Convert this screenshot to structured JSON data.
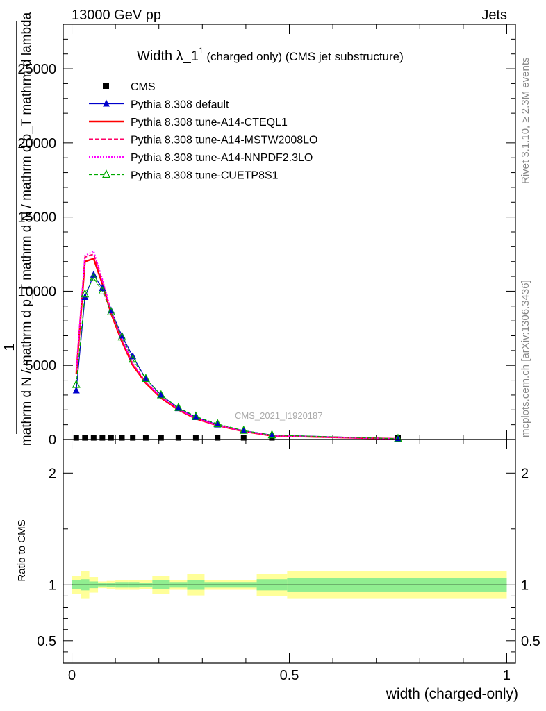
{
  "header": {
    "left": "13000 GeV pp",
    "right": "Jets"
  },
  "side_labels": {
    "rivet": "Rivet 3.1.10, ≥ 2.3M events",
    "mcplots": "mcplots.cern.ch [arXiv:1306.3436]"
  },
  "watermark": "CMS_2021_I1920187",
  "colors": {
    "cms": "#000000",
    "default": "#0000cc",
    "cteql1": "#ff0000",
    "mstw": "#ff0066",
    "nnpdf": "#ff00ff",
    "cuetp8s1": "#00aa00",
    "band_inner": "#90ee90",
    "band_outer": "#ffff99"
  },
  "chart_data": [
    {
      "type": "line",
      "title": "Width λ_1",
      "title_sup": "1",
      "title_suffix": " (charged only) (CMS jet substructure)",
      "ylabel_numerator": "1",
      "ylabel_denominator": "mathrm d N / mathrm d p_T mathrm d N / mathrm d p_T mathrm d lambda",
      "ylabel_pieces": [
        "mathrm d",
        "N",
        "mathrm d p_T mathrm d lambda"
      ],
      "ylabel_full": "mathrm d N / mathrm d p_T mathrm d N / mathrm d p_T mathrm d lambda",
      "xlim": [
        -0.02,
        1.02
      ],
      "ylim": [
        0,
        28000
      ],
      "yticks": [
        0,
        5000,
        10000,
        15000,
        20000,
        25000
      ],
      "ytick_labels": [
        "0",
        "5000",
        "10000",
        "15000",
        "20000",
        "25000"
      ],
      "legend_position": "top-left",
      "x": [
        0.01,
        0.03,
        0.05,
        0.07,
        0.09,
        0.115,
        0.14,
        0.17,
        0.205,
        0.245,
        0.285,
        0.335,
        0.395,
        0.46,
        0.75
      ],
      "series": [
        {
          "name": "CMS",
          "key": "cms",
          "marker": "square",
          "values": [
            20,
            20,
            20,
            20,
            20,
            20,
            20,
            20,
            20,
            20,
            20,
            20,
            20,
            20,
            20
          ]
        },
        {
          "name": "Pythia 8.308 default",
          "key": "default",
          "marker": "triangle-filled",
          "values": [
            3300,
            9600,
            11100,
            10200,
            8700,
            7000,
            5600,
            4100,
            3000,
            2100,
            1500,
            1000,
            600,
            300,
            50
          ]
        },
        {
          "name": "Pythia 8.308 tune-A14-CTEQL1",
          "key": "cteql1",
          "marker": "none",
          "values": [
            4400,
            12000,
            12200,
            10500,
            8500,
            6600,
            5000,
            3800,
            2800,
            2000,
            1400,
            950,
            550,
            250,
            40
          ]
        },
        {
          "name": "Pythia 8.308 tune-A14-MSTW2008LO",
          "key": "mstw",
          "marker": "none",
          "values": [
            4600,
            12300,
            12500,
            10700,
            8600,
            6700,
            5100,
            3850,
            2850,
            2020,
            1420,
            960,
            560,
            255,
            40
          ]
        },
        {
          "name": "Pythia 8.308 tune-A14-NNPDF2.3LO",
          "key": "nnpdf",
          "marker": "none",
          "values": [
            4700,
            12400,
            12700,
            10800,
            8700,
            6800,
            5150,
            3900,
            2900,
            2050,
            1440,
            970,
            570,
            260,
            40
          ]
        },
        {
          "name": "Pythia 8.308 tune-CUETP8S1",
          "key": "cuetp8s1",
          "marker": "triangle-open",
          "values": [
            3700,
            9800,
            10900,
            10000,
            8600,
            6900,
            5400,
            4100,
            3000,
            2150,
            1550,
            1050,
            600,
            300,
            50
          ]
        }
      ]
    },
    {
      "type": "area",
      "ylabel": "Ratio to CMS",
      "xlabel": "width (charged-only)",
      "xlim": [
        -0.02,
        1.02
      ],
      "ylim": [
        0.3,
        2.3
      ],
      "yticks": [
        0.5,
        1,
        2
      ],
      "ytick_labels": [
        "0.5",
        "1",
        "2"
      ],
      "xticks": [
        0,
        0.5,
        1
      ],
      "xtick_labels": [
        "0",
        "0.5",
        "1"
      ],
      "bins": [
        {
          "lo": 0.0,
          "hi": 0.02,
          "inner": [
            0.96,
            1.04
          ],
          "outer": [
            0.92,
            1.08
          ]
        },
        {
          "lo": 0.02,
          "hi": 0.04,
          "inner": [
            0.95,
            1.05
          ],
          "outer": [
            0.88,
            1.12
          ]
        },
        {
          "lo": 0.04,
          "hi": 0.06,
          "inner": [
            0.97,
            1.03
          ],
          "outer": [
            0.93,
            1.07
          ]
        },
        {
          "lo": 0.06,
          "hi": 0.08,
          "inner": [
            0.985,
            1.015
          ],
          "outer": [
            0.97,
            1.03
          ]
        },
        {
          "lo": 0.08,
          "hi": 0.1,
          "inner": [
            0.98,
            1.02
          ],
          "outer": [
            0.965,
            1.035
          ]
        },
        {
          "lo": 0.1,
          "hi": 0.13,
          "inner": [
            0.975,
            1.025
          ],
          "outer": [
            0.955,
            1.045
          ]
        },
        {
          "lo": 0.13,
          "hi": 0.155,
          "inner": [
            0.975,
            1.025
          ],
          "outer": [
            0.955,
            1.045
          ]
        },
        {
          "lo": 0.155,
          "hi": 0.185,
          "inner": [
            0.98,
            1.02
          ],
          "outer": [
            0.96,
            1.04
          ]
        },
        {
          "lo": 0.185,
          "hi": 0.225,
          "inner": [
            0.96,
            1.04
          ],
          "outer": [
            0.92,
            1.08
          ]
        },
        {
          "lo": 0.225,
          "hi": 0.265,
          "inner": [
            0.975,
            1.025
          ],
          "outer": [
            0.955,
            1.045
          ]
        },
        {
          "lo": 0.265,
          "hi": 0.305,
          "inner": [
            0.955,
            1.045
          ],
          "outer": [
            0.905,
            1.095
          ]
        },
        {
          "lo": 0.305,
          "hi": 0.365,
          "inner": [
            0.975,
            1.025
          ],
          "outer": [
            0.955,
            1.045
          ]
        },
        {
          "lo": 0.365,
          "hi": 0.425,
          "inner": [
            0.975,
            1.025
          ],
          "outer": [
            0.955,
            1.045
          ]
        },
        {
          "lo": 0.425,
          "hi": 0.495,
          "inner": [
            0.95,
            1.05
          ],
          "outer": [
            0.9,
            1.1
          ]
        },
        {
          "lo": 0.495,
          "hi": 1.0,
          "inner": [
            0.94,
            1.06
          ],
          "outer": [
            0.88,
            1.12
          ]
        }
      ],
      "reference_line": 1
    }
  ]
}
